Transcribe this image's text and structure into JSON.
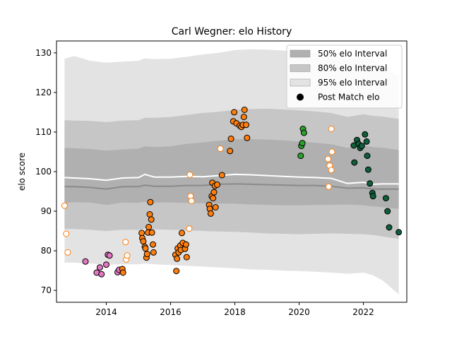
{
  "chart_data": {
    "type": "scatter",
    "title": "Carl Wegner: elo History",
    "xlabel": "",
    "ylabel": "elo score",
    "xlim": [
      2012.45,
      2023.35
    ],
    "ylim": [
      67,
      133
    ],
    "x_ticks": [
      {
        "value": 2014,
        "label": "2014"
      },
      {
        "value": 2016,
        "label": "2016"
      },
      {
        "value": 2018,
        "label": "2018"
      },
      {
        "value": 2020,
        "label": "2020"
      },
      {
        "value": 2022,
        "label": "2022"
      }
    ],
    "y_ticks": [
      {
        "value": 70,
        "label": "70"
      },
      {
        "value": 80,
        "label": "80"
      },
      {
        "value": 90,
        "label": "90"
      },
      {
        "value": 100,
        "label": "100"
      },
      {
        "value": 110,
        "label": "110"
      },
      {
        "value": 120,
        "label": "120"
      },
      {
        "value": 130,
        "label": "130"
      }
    ],
    "grid": false,
    "legend_position": "top-right",
    "legend": [
      {
        "label": "50% elo Interval",
        "kind": "band",
        "color": "#b0b0b0"
      },
      {
        "label": "80% elo Interval",
        "kind": "band",
        "color": "#c6c6c6"
      },
      {
        "label": "95% elo Interval",
        "kind": "band",
        "color": "#e3e3e3"
      },
      {
        "label": "Post Match elo",
        "kind": "marker",
        "color": "#000000"
      }
    ],
    "bands": {
      "x": [
        2012.7,
        2013.0,
        2013.5,
        2014.0,
        2014.5,
        2015.0,
        2015.2,
        2015.5,
        2016.0,
        2016.5,
        2017.0,
        2017.5,
        2018.0,
        2018.5,
        2019.0,
        2019.5,
        2020.0,
        2020.5,
        2021.0,
        2021.5,
        2022.0,
        2022.3,
        2022.6,
        2023.1
      ],
      "center": [
        96.2,
        96.2,
        96.0,
        95.6,
        96.2,
        96.2,
        96.6,
        96.3,
        96.3,
        96.5,
        96.5,
        96.8,
        96.9,
        96.8,
        96.7,
        96.6,
        96.5,
        96.5,
        96.3,
        95.8,
        95.9,
        95.6,
        95.6,
        95.6
      ],
      "mean": [
        98.5,
        98.4,
        98.2,
        97.8,
        98.4,
        98.5,
        99.3,
        98.6,
        98.6,
        98.8,
        98.7,
        99.0,
        99.3,
        99.2,
        99.0,
        98.8,
        98.6,
        98.5,
        98.3,
        97.0,
        97.3,
        96.8,
        96.9,
        96.9
      ],
      "i50_low": [
        92.0,
        92.3,
        92.2,
        91.6,
        92.2,
        92.1,
        92.4,
        92.2,
        92.2,
        92.1,
        92.0,
        91.9,
        91.9,
        91.7,
        91.6,
        91.5,
        91.5,
        91.6,
        91.6,
        91.7,
        91.5,
        91.2,
        91.0,
        90.6
      ],
      "i50_high": [
        106.0,
        105.9,
        105.7,
        105.3,
        105.6,
        105.8,
        106.4,
        106.2,
        106.4,
        107.0,
        107.4,
        107.8,
        108.2,
        108.2,
        108.1,
        107.9,
        107.6,
        107.3,
        106.9,
        106.0,
        106.6,
        106.2,
        106.0,
        105.5
      ],
      "i80_low": [
        85.5,
        85.5,
        85.3,
        85.0,
        85.3,
        85.3,
        85.6,
        85.4,
        85.3,
        85.2,
        85.0,
        84.9,
        84.8,
        84.6,
        84.4,
        84.3,
        84.2,
        84.3,
        84.4,
        84.3,
        84.2,
        84.0,
        83.6,
        83.0
      ],
      "i80_high": [
        113.0,
        112.9,
        112.8,
        112.5,
        112.9,
        113.0,
        113.6,
        113.6,
        113.8,
        114.3,
        114.8,
        115.1,
        115.6,
        115.8,
        115.9,
        115.7,
        115.5,
        115.2,
        114.8,
        113.8,
        114.5,
        114.1,
        113.9,
        113.3
      ],
      "i95_low": [
        77.0,
        77.0,
        76.8,
        76.5,
        76.6,
        76.6,
        76.8,
        76.6,
        76.4,
        76.2,
        76.0,
        75.8,
        75.6,
        75.3,
        75.2,
        75.0,
        74.9,
        74.7,
        74.5,
        74.2,
        74.5,
        73.8,
        72.5,
        69.0
      ],
      "i95_high": [
        128.5,
        129.2,
        128.0,
        127.5,
        127.8,
        128.0,
        128.6,
        128.4,
        128.5,
        129.0,
        129.6,
        130.0,
        130.7,
        130.9,
        130.8,
        130.6,
        130.3,
        130.0,
        129.6,
        128.3,
        129.0,
        128.0,
        126.5,
        124.0
      ]
    },
    "series": [
      {
        "color": "#e377c2",
        "filled": true,
        "points": [
          [
            2013.35,
            77.3
          ],
          [
            2013.7,
            74.5
          ],
          [
            2013.8,
            75.8
          ],
          [
            2013.85,
            74.1
          ],
          [
            2014.0,
            76.5
          ],
          [
            2014.05,
            79.0
          ],
          [
            2014.1,
            78.8
          ],
          [
            2014.35,
            74.6
          ],
          [
            2014.4,
            75.2
          ]
        ]
      },
      {
        "color": "#ff7f0e",
        "filled": false,
        "points": [
          [
            2012.7,
            91.4
          ],
          [
            2012.75,
            84.3
          ],
          [
            2012.8,
            79.6
          ],
          [
            2014.6,
            82.2
          ],
          [
            2014.62,
            77.8
          ],
          [
            2014.65,
            78.8
          ],
          [
            2016.6,
            99.2
          ],
          [
            2016.62,
            93.8
          ],
          [
            2016.65,
            92.6
          ],
          [
            2016.58,
            85.6
          ],
          [
            2017.55,
            105.8
          ],
          [
            2020.9,
            103.2
          ],
          [
            2020.95,
            101.5
          ],
          [
            2021.0,
            100.4
          ],
          [
            2021.0,
            110.8
          ],
          [
            2021.02,
            105.0
          ],
          [
            2020.92,
            96.2
          ]
        ]
      },
      {
        "color": "#ff7f0e",
        "filled": true,
        "points": [
          [
            2014.5,
            75.4
          ],
          [
            2014.52,
            74.5
          ],
          [
            2015.1,
            84.5
          ],
          [
            2015.12,
            83.2
          ],
          [
            2015.15,
            82.4
          ],
          [
            2015.2,
            81.0
          ],
          [
            2015.22,
            80.6
          ],
          [
            2015.25,
            78.3
          ],
          [
            2015.27,
            79.2
          ],
          [
            2015.3,
            84.6
          ],
          [
            2015.32,
            86.0
          ],
          [
            2015.35,
            89.2
          ],
          [
            2015.37,
            92.3
          ],
          [
            2015.4,
            87.9
          ],
          [
            2015.42,
            84.6
          ],
          [
            2015.45,
            81.6
          ],
          [
            2015.47,
            79.6
          ],
          [
            2016.15,
            79.0
          ],
          [
            2016.18,
            74.9
          ],
          [
            2016.2,
            78.0
          ],
          [
            2016.22,
            80.6
          ],
          [
            2016.25,
            79.6
          ],
          [
            2016.3,
            81.3
          ],
          [
            2016.32,
            80.2
          ],
          [
            2016.35,
            84.5
          ],
          [
            2016.38,
            82.0
          ],
          [
            2016.45,
            80.5
          ],
          [
            2016.48,
            81.6
          ],
          [
            2016.5,
            78.4
          ],
          [
            2017.2,
            91.6
          ],
          [
            2017.22,
            90.6
          ],
          [
            2017.25,
            89.4
          ],
          [
            2017.28,
            93.8
          ],
          [
            2017.3,
            97.2
          ],
          [
            2017.32,
            93.3
          ],
          [
            2017.35,
            94.8
          ],
          [
            2017.38,
            96.4
          ],
          [
            2017.4,
            91.0
          ],
          [
            2017.45,
            96.7
          ],
          [
            2017.6,
            99.1
          ],
          [
            2017.85,
            105.2
          ],
          [
            2017.88,
            108.3
          ],
          [
            2017.95,
            112.7
          ],
          [
            2017.98,
            115.0
          ],
          [
            2018.05,
            112.2
          ],
          [
            2018.15,
            111.6
          ],
          [
            2018.2,
            111.3
          ],
          [
            2018.25,
            111.8
          ],
          [
            2018.28,
            113.8
          ],
          [
            2018.3,
            115.6
          ],
          [
            2018.35,
            111.8
          ],
          [
            2018.38,
            108.5
          ]
        ]
      },
      {
        "color": "#2ca02c",
        "filled": true,
        "points": [
          [
            2020.05,
            104.0
          ],
          [
            2020.07,
            106.5
          ],
          [
            2020.1,
            107.2
          ],
          [
            2020.12,
            110.8
          ],
          [
            2020.15,
            109.8
          ]
        ]
      },
      {
        "color": "#0e5e3a",
        "filled": true,
        "points": [
          [
            2021.7,
            106.6
          ],
          [
            2021.72,
            102.3
          ],
          [
            2021.8,
            108.0
          ],
          [
            2021.85,
            107.0
          ],
          [
            2021.9,
            106.0
          ],
          [
            2021.95,
            106.5
          ],
          [
            2022.05,
            109.4
          ],
          [
            2022.1,
            107.6
          ],
          [
            2022.12,
            104.0
          ],
          [
            2022.15,
            100.5
          ],
          [
            2022.2,
            97.0
          ],
          [
            2022.28,
            94.6
          ],
          [
            2022.3,
            93.8
          ],
          [
            2022.7,
            93.3
          ],
          [
            2022.75,
            90.0
          ],
          [
            2022.8,
            85.9
          ],
          [
            2023.1,
            84.7
          ]
        ]
      }
    ]
  }
}
